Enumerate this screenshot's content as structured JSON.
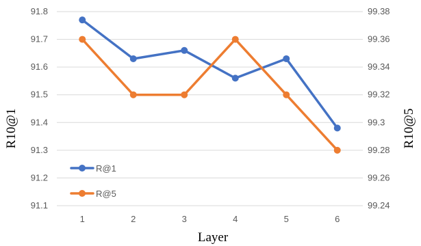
{
  "chart_data": {
    "type": "line",
    "categories": [
      "1",
      "2",
      "3",
      "4",
      "5",
      "6"
    ],
    "xlabel": "Layer",
    "ylabel_left": "R10@1",
    "ylabel_right": "R10@5",
    "ylim_left": [
      91.1,
      91.8
    ],
    "ylim_right": [
      99.24,
      99.38
    ],
    "yticks_left": [
      "91.1",
      "91.2",
      "91.3",
      "91.4",
      "91.5",
      "91.6",
      "91.7",
      "91.8"
    ],
    "yticks_right": [
      "99.24",
      "99.26",
      "99.28",
      "99.3",
      "99.32",
      "99.34",
      "99.36",
      "99.38"
    ],
    "grid": "horizontal",
    "legend_position": "bottom-left",
    "series": [
      {
        "name": "R@1",
        "axis": "left",
        "color": "#4472C4",
        "values": [
          91.77,
          91.63,
          91.66,
          91.56,
          91.63,
          91.38
        ]
      },
      {
        "name": "R@5",
        "axis": "right",
        "color": "#ED7D31",
        "values": [
          99.36,
          99.32,
          99.32,
          99.36,
          99.32,
          99.28
        ]
      }
    ]
  }
}
